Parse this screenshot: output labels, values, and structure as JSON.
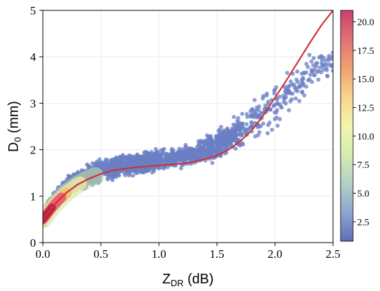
{
  "chart_data": {
    "type": "scatter",
    "xlabel": {
      "main": "Z",
      "sub": "DR",
      "suffix": " (dB)"
    },
    "ylabel": {
      "main": "D",
      "sub": "0",
      "suffix": " (mm)"
    },
    "xlim": [
      0,
      2.5
    ],
    "ylim": [
      0,
      5
    ],
    "xticks": [
      0.0,
      0.5,
      1.0,
      1.5,
      2.0,
      2.5
    ],
    "xtick_labels": [
      "0.0",
      "0.5",
      "1.0",
      "1.5",
      "2.0",
      "2.5"
    ],
    "yticks": [
      0,
      1,
      2,
      3,
      4,
      5
    ],
    "ytick_labels": [
      "0",
      "1",
      "2",
      "3",
      "4",
      "5"
    ],
    "grid": true,
    "fit_line": {
      "color": "#cc3333",
      "x": [
        0.0,
        0.05,
        0.1,
        0.2,
        0.3,
        0.4,
        0.5,
        0.6,
        0.7,
        0.8,
        0.9,
        1.0,
        1.1,
        1.2,
        1.3,
        1.4,
        1.5,
        1.6,
        1.7,
        1.8,
        1.9,
        2.0,
        2.1,
        2.2,
        2.3,
        2.4,
        2.5
      ],
      "y": [
        0.5,
        0.66,
        0.82,
        1.07,
        1.25,
        1.38,
        1.48,
        1.55,
        1.59,
        1.62,
        1.64,
        1.66,
        1.68,
        1.7,
        1.74,
        1.8,
        1.88,
        2.0,
        2.18,
        2.42,
        2.74,
        3.12,
        3.5,
        3.9,
        4.3,
        4.68,
        5.0
      ]
    },
    "scatter_band": {
      "x": [
        0.0,
        0.1,
        0.2,
        0.3,
        0.4,
        0.5,
        0.7,
        0.9,
        1.1,
        1.3,
        1.5,
        1.7,
        1.9,
        2.1,
        2.3,
        2.5
      ],
      "y_low": [
        0.3,
        0.62,
        0.88,
        1.05,
        1.17,
        1.26,
        1.38,
        1.45,
        1.52,
        1.62,
        1.72,
        1.9,
        2.2,
        2.6,
        3.2,
        3.6
      ],
      "y_high": [
        0.75,
        1.2,
        1.45,
        1.62,
        1.74,
        1.84,
        1.95,
        2.02,
        2.1,
        2.22,
        2.45,
        2.85,
        3.3,
        3.8,
        4.15,
        4.3
      ],
      "color": "#6b7fc4"
    },
    "density_core": {
      "x_max": 0.16,
      "colors": [
        "#b8204a",
        "#e8506a",
        "#f4b870",
        "#f5f0a8",
        "#c8e6a0"
      ]
    },
    "colorbar": {
      "ticks": [
        2.5,
        5.0,
        7.5,
        10.0,
        12.5,
        15.0,
        17.5,
        20.0
      ],
      "tick_labels": [
        "2.5",
        "5.0",
        "7.5",
        "10.0",
        "12.5",
        "15.0",
        "17.5",
        "20.0"
      ],
      "range": [
        0.8,
        21
      ],
      "colors": [
        "#5e6eb4",
        "#8ea6d0",
        "#b3d0c6",
        "#d6ecb0",
        "#f3f5ae",
        "#f8d58a",
        "#f0a074",
        "#e07276",
        "#c8406a"
      ]
    }
  }
}
